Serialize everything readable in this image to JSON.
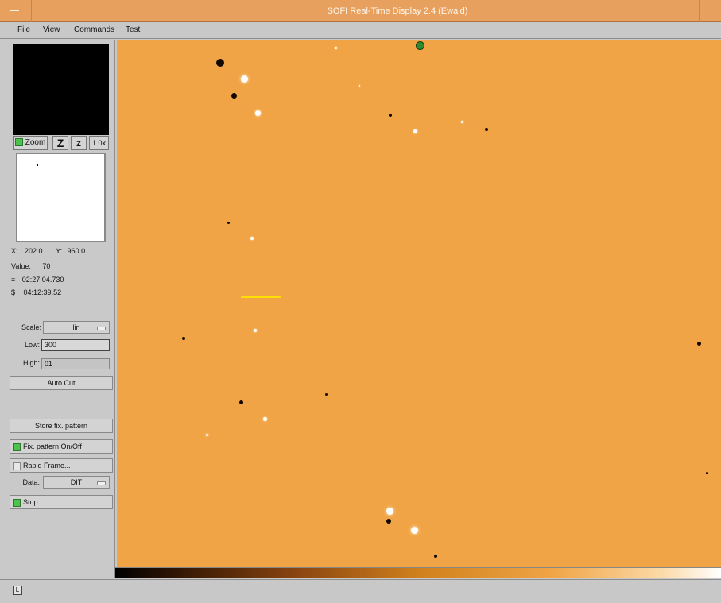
{
  "window": {
    "title": "SOFI Real-Time Display 2.4 (Ewald)"
  },
  "menu": [
    "File",
    "View",
    "Commands",
    "Test"
  ],
  "zoom": {
    "checkbox_label": "Zoom",
    "z_in": "Z",
    "z_out": "z",
    "zoom_factor": "1 0x"
  },
  "readout": {
    "x_label": "X:",
    "x_value": "202.0",
    "y_label": "Y:",
    "y_value": "960.0",
    "value_label": "Value:",
    "value": "70",
    "ra_label": "=",
    "ra": "02:27:04.730",
    "dec_label": "$",
    "dec": "04:12:39.52"
  },
  "scale": {
    "label": "Scale:",
    "value": "lin"
  },
  "low": {
    "label": "Low:",
    "value": "300"
  },
  "high": {
    "label": "High:",
    "value": "01"
  },
  "buttons": {
    "auto_cut": "Auto Cut",
    "store_pattern": "Store fix. pattern",
    "fix_pattern": "Fix. pattern On/Off",
    "rapid_frame": "Rapid Frame...",
    "stop": "Stop"
  },
  "data": {
    "label": "Data:",
    "value": "DIT"
  },
  "status": {
    "icon_label": "L"
  },
  "colors": {
    "image_background": "#f0a445",
    "title_bar": "#e8a05e",
    "panel": "#c9c9c9"
  },
  "sources": [
    {
      "dark": true
    },
    {
      "dark": false
    },
    {
      "dark": true
    },
    {
      "dark": false
    },
    {
      "dark": false
    },
    {
      "dark": true
    },
    {
      "dark": false
    },
    {
      "dark": false
    },
    {
      "dark": true
    },
    {
      "dark": false
    },
    {
      "dark": true
    },
    {
      "dark": false
    },
    {
      "dark": true
    },
    {
      "dark": false
    },
    {
      "dark": true
    },
    {
      "dark": false
    },
    {
      "dark": true
    },
    {
      "dark": true
    },
    {
      "dark": false
    },
    {
      "dark": true
    },
    {
      "dark": false
    },
    {
      "dark": true
    },
    {
      "dark": false
    },
    {
      "dark": true
    }
  ]
}
